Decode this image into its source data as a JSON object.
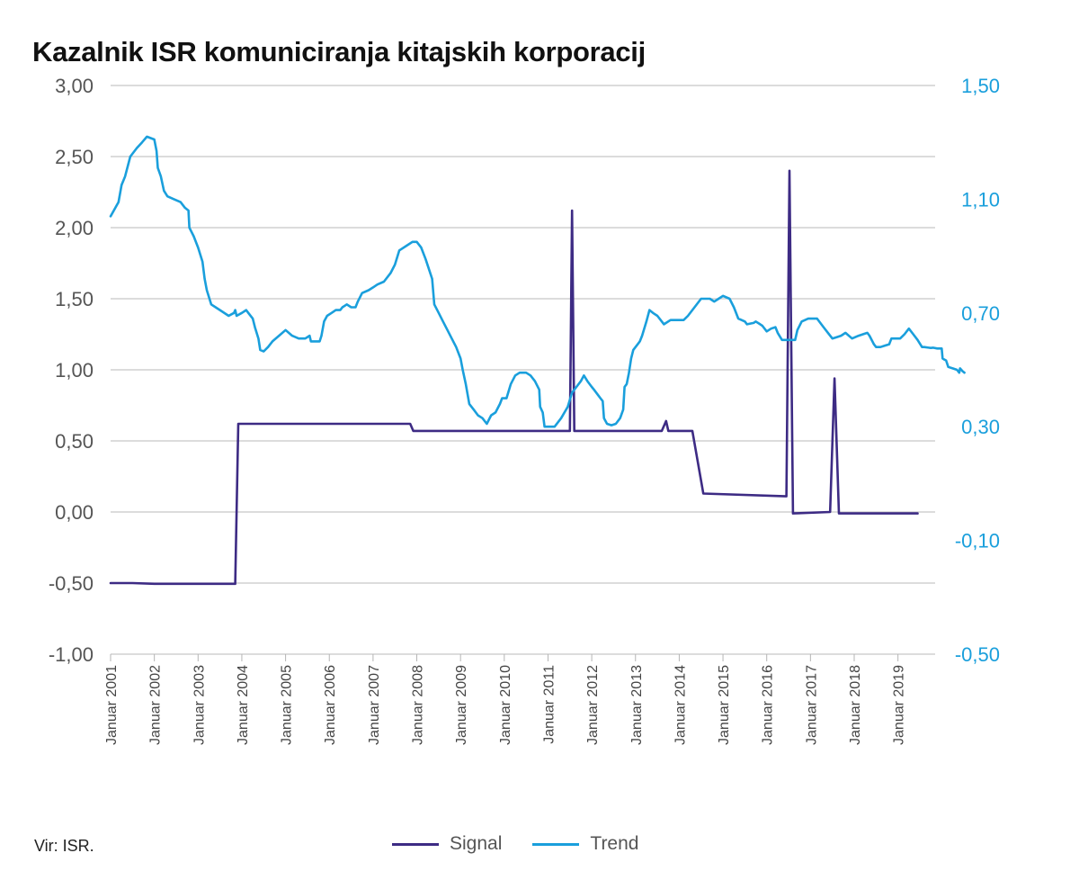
{
  "chart_data": {
    "type": "line",
    "title": "Kazalnik ISR komuniciranja kitajskih korporacij",
    "source": "Vir: ISR.",
    "y_left": {
      "ticks": [
        "3,00",
        "2,50",
        "2,00",
        "1,50",
        "1,00",
        "0,50",
        "0,00",
        "-0,50",
        "-1,00"
      ],
      "range": [
        -1.0,
        3.0
      ]
    },
    "y_right": {
      "ticks": [
        "1,50",
        "1,10",
        "0,70",
        "0,30",
        "-0,10",
        "-0,50"
      ],
      "range": [
        -0.5,
        1.5
      ],
      "color": "#1a9fdc"
    },
    "x_range": [
      2001.0,
      2019.85
    ],
    "x_ticks": [
      {
        "x": 2001,
        "label": "Januar 2001"
      },
      {
        "x": 2002,
        "label": "Januar 2002"
      },
      {
        "x": 2003,
        "label": "Januar 2003"
      },
      {
        "x": 2004,
        "label": "Januar 2004"
      },
      {
        "x": 2005,
        "label": "Januar 2005"
      },
      {
        "x": 2006,
        "label": "Januar 2006"
      },
      {
        "x": 2007,
        "label": "Januar 2007"
      },
      {
        "x": 2008,
        "label": "Januar 2008"
      },
      {
        "x": 2009,
        "label": "Januar 2009"
      },
      {
        "x": 2010,
        "label": "Januar 2010"
      },
      {
        "x": 2011,
        "label": "Januar 2011"
      },
      {
        "x": 2012,
        "label": "Januar 2012"
      },
      {
        "x": 2013,
        "label": "Januar 2013"
      },
      {
        "x": 2014,
        "label": "Januar 2014"
      },
      {
        "x": 2015,
        "label": "Januar 2015"
      },
      {
        "x": 2016,
        "label": "Januar 2016"
      },
      {
        "x": 2017,
        "label": "Januar 2017"
      },
      {
        "x": 2018,
        "label": "Januar 2018"
      },
      {
        "x": 2019,
        "label": "Januar 2019"
      }
    ],
    "grid": true,
    "legend_position": "bottom-center",
    "series": [
      {
        "name": "Signal",
        "axis": "left",
        "color": "#3d2b84",
        "points": [
          [
            2001.0,
            -0.5
          ],
          [
            2001.5,
            -0.5
          ],
          [
            2002.0,
            -0.505
          ],
          [
            2003.0,
            -0.505
          ],
          [
            2003.85,
            -0.505
          ],
          [
            2003.92,
            0.62
          ],
          [
            2005.0,
            0.62
          ],
          [
            2007.85,
            0.62
          ],
          [
            2007.92,
            0.57
          ],
          [
            2011.5,
            0.57
          ],
          [
            2011.55,
            2.12
          ],
          [
            2011.6,
            0.57
          ],
          [
            2013.6,
            0.57
          ],
          [
            2013.7,
            0.64
          ],
          [
            2013.75,
            0.57
          ],
          [
            2014.3,
            0.57
          ],
          [
            2014.55,
            0.13
          ],
          [
            2016.45,
            0.11
          ],
          [
            2016.52,
            2.4
          ],
          [
            2016.6,
            -0.01
          ],
          [
            2017.45,
            0.0
          ],
          [
            2017.55,
            0.94
          ],
          [
            2017.65,
            -0.01
          ],
          [
            2019.45,
            -0.01
          ]
        ]
      },
      {
        "name": "Trend",
        "axis": "right",
        "color": "#1a9fdc",
        "points": [
          [
            2001.0,
            1.04
          ],
          [
            2001.18,
            1.09
          ],
          [
            2001.25,
            1.15
          ],
          [
            2001.33,
            1.18
          ],
          [
            2001.45,
            1.25
          ],
          [
            2001.6,
            1.28
          ],
          [
            2001.72,
            1.3
          ],
          [
            2001.83,
            1.32
          ],
          [
            2002.0,
            1.31
          ],
          [
            2002.05,
            1.27
          ],
          [
            2002.08,
            1.21
          ],
          [
            2002.15,
            1.18
          ],
          [
            2002.22,
            1.13
          ],
          [
            2002.3,
            1.11
          ],
          [
            2002.45,
            1.1
          ],
          [
            2002.6,
            1.09
          ],
          [
            2002.7,
            1.07
          ],
          [
            2002.78,
            1.06
          ],
          [
            2002.8,
            1.0
          ],
          [
            2002.9,
            0.97
          ],
          [
            2003.0,
            0.93
          ],
          [
            2003.1,
            0.88
          ],
          [
            2003.15,
            0.82
          ],
          [
            2003.2,
            0.78
          ],
          [
            2003.3,
            0.73
          ],
          [
            2003.4,
            0.72
          ],
          [
            2003.5,
            0.71
          ],
          [
            2003.7,
            0.69
          ],
          [
            2003.82,
            0.7
          ],
          [
            2003.85,
            0.71
          ],
          [
            2003.88,
            0.69
          ],
          [
            2004.0,
            0.7
          ],
          [
            2004.1,
            0.71
          ],
          [
            2004.15,
            0.7
          ],
          [
            2004.25,
            0.68
          ],
          [
            2004.3,
            0.65
          ],
          [
            2004.38,
            0.61
          ],
          [
            2004.42,
            0.57
          ],
          [
            2004.5,
            0.565
          ],
          [
            2004.6,
            0.58
          ],
          [
            2004.7,
            0.6
          ],
          [
            2004.85,
            0.62
          ],
          [
            2005.0,
            0.64
          ],
          [
            2005.15,
            0.62
          ],
          [
            2005.3,
            0.61
          ],
          [
            2005.45,
            0.61
          ],
          [
            2005.55,
            0.62
          ],
          [
            2005.58,
            0.6
          ],
          [
            2005.65,
            0.6
          ],
          [
            2005.78,
            0.6
          ],
          [
            2005.82,
            0.62
          ],
          [
            2005.88,
            0.67
          ],
          [
            2005.95,
            0.69
          ],
          [
            2006.05,
            0.7
          ],
          [
            2006.15,
            0.71
          ],
          [
            2006.25,
            0.71
          ],
          [
            2006.3,
            0.72
          ],
          [
            2006.4,
            0.73
          ],
          [
            2006.5,
            0.72
          ],
          [
            2006.6,
            0.72
          ],
          [
            2006.65,
            0.74
          ],
          [
            2006.75,
            0.77
          ],
          [
            2006.9,
            0.78
          ],
          [
            2007.0,
            0.79
          ],
          [
            2007.1,
            0.8
          ],
          [
            2007.25,
            0.81
          ],
          [
            2007.4,
            0.84
          ],
          [
            2007.5,
            0.87
          ],
          [
            2007.6,
            0.92
          ],
          [
            2007.8,
            0.94
          ],
          [
            2007.9,
            0.95
          ],
          [
            2008.0,
            0.95
          ],
          [
            2008.1,
            0.93
          ],
          [
            2008.2,
            0.89
          ],
          [
            2008.35,
            0.82
          ],
          [
            2008.4,
            0.73
          ],
          [
            2008.5,
            0.7
          ],
          [
            2008.6,
            0.67
          ],
          [
            2008.7,
            0.64
          ],
          [
            2008.8,
            0.61
          ],
          [
            2008.9,
            0.58
          ],
          [
            2009.0,
            0.54
          ],
          [
            2009.05,
            0.5
          ],
          [
            2009.12,
            0.45
          ],
          [
            2009.2,
            0.38
          ],
          [
            2009.3,
            0.36
          ],
          [
            2009.4,
            0.34
          ],
          [
            2009.5,
            0.33
          ],
          [
            2009.6,
            0.31
          ],
          [
            2009.7,
            0.34
          ],
          [
            2009.8,
            0.35
          ],
          [
            2009.9,
            0.38
          ],
          [
            2009.95,
            0.4
          ],
          [
            2010.05,
            0.4
          ],
          [
            2010.15,
            0.45
          ],
          [
            2010.25,
            0.48
          ],
          [
            2010.35,
            0.49
          ],
          [
            2010.5,
            0.49
          ],
          [
            2010.6,
            0.48
          ],
          [
            2010.7,
            0.46
          ],
          [
            2010.8,
            0.43
          ],
          [
            2010.82,
            0.37
          ],
          [
            2010.88,
            0.35
          ],
          [
            2010.92,
            0.3
          ],
          [
            2011.05,
            0.3
          ],
          [
            2011.15,
            0.3
          ],
          [
            2011.3,
            0.33
          ],
          [
            2011.45,
            0.37
          ],
          [
            2011.55,
            0.42
          ],
          [
            2011.65,
            0.44
          ],
          [
            2011.75,
            0.46
          ],
          [
            2011.82,
            0.48
          ],
          [
            2011.9,
            0.46
          ],
          [
            2012.0,
            0.44
          ],
          [
            2012.05,
            0.43
          ],
          [
            2012.15,
            0.41
          ],
          [
            2012.2,
            0.4
          ],
          [
            2012.25,
            0.39
          ],
          [
            2012.28,
            0.33
          ],
          [
            2012.35,
            0.31
          ],
          [
            2012.45,
            0.305
          ],
          [
            2012.55,
            0.31
          ],
          [
            2012.65,
            0.33
          ],
          [
            2012.72,
            0.36
          ],
          [
            2012.75,
            0.44
          ],
          [
            2012.8,
            0.45
          ],
          [
            2012.85,
            0.49
          ],
          [
            2012.9,
            0.54
          ],
          [
            2012.95,
            0.57
          ],
          [
            2013.05,
            0.59
          ],
          [
            2013.1,
            0.6
          ],
          [
            2013.15,
            0.62
          ],
          [
            2013.25,
            0.67
          ],
          [
            2013.32,
            0.71
          ],
          [
            2013.4,
            0.7
          ],
          [
            2013.5,
            0.69
          ],
          [
            2013.6,
            0.67
          ],
          [
            2013.65,
            0.66
          ],
          [
            2013.8,
            0.675
          ],
          [
            2013.9,
            0.675
          ],
          [
            2014.0,
            0.675
          ],
          [
            2014.1,
            0.675
          ],
          [
            2014.2,
            0.69
          ],
          [
            2014.35,
            0.72
          ],
          [
            2014.5,
            0.75
          ],
          [
            2014.7,
            0.75
          ],
          [
            2014.8,
            0.74
          ],
          [
            2014.9,
            0.75
          ],
          [
            2015.0,
            0.76
          ],
          [
            2015.15,
            0.75
          ],
          [
            2015.25,
            0.72
          ],
          [
            2015.35,
            0.68
          ],
          [
            2015.5,
            0.67
          ],
          [
            2015.55,
            0.66
          ],
          [
            2015.7,
            0.665
          ],
          [
            2015.75,
            0.67
          ],
          [
            2015.85,
            0.66
          ],
          [
            2015.9,
            0.655
          ],
          [
            2016.0,
            0.635
          ],
          [
            2016.1,
            0.645
          ],
          [
            2016.2,
            0.65
          ],
          [
            2016.25,
            0.63
          ],
          [
            2016.35,
            0.605
          ],
          [
            2016.5,
            0.605
          ],
          [
            2016.65,
            0.605
          ],
          [
            2016.7,
            0.64
          ],
          [
            2016.8,
            0.67
          ],
          [
            2016.95,
            0.68
          ],
          [
            2017.05,
            0.68
          ],
          [
            2017.15,
            0.68
          ],
          [
            2017.3,
            0.65
          ],
          [
            2017.4,
            0.63
          ],
          [
            2017.5,
            0.61
          ],
          [
            2017.6,
            0.615
          ],
          [
            2017.7,
            0.62
          ],
          [
            2017.8,
            0.63
          ],
          [
            2017.95,
            0.61
          ],
          [
            2018.1,
            0.62
          ],
          [
            2018.2,
            0.625
          ],
          [
            2018.3,
            0.63
          ],
          [
            2018.35,
            0.62
          ],
          [
            2018.45,
            0.59
          ],
          [
            2018.5,
            0.58
          ],
          [
            2018.6,
            0.58
          ],
          [
            2018.7,
            0.585
          ],
          [
            2018.8,
            0.59
          ],
          [
            2018.85,
            0.61
          ],
          [
            2018.95,
            0.61
          ],
          [
            2019.05,
            0.61
          ],
          [
            2019.15,
            0.625
          ],
          [
            2019.25,
            0.645
          ],
          [
            2019.35,
            0.625
          ],
          [
            2019.45,
            0.605
          ],
          [
            2019.55,
            0.58
          ],
          [
            2019.6,
            0.58
          ],
          [
            2019.7,
            0.578
          ],
          [
            2019.75,
            0.577
          ],
          [
            2019.8,
            0.578
          ],
          [
            2019.9,
            0.575
          ],
          [
            2020.0,
            0.575
          ],
          [
            2020.02,
            0.54
          ],
          [
            2020.05,
            0.537
          ],
          [
            2020.1,
            0.533
          ],
          [
            2020.15,
            0.51
          ],
          [
            2020.25,
            0.505
          ],
          [
            2020.35,
            0.5
          ],
          [
            2020.4,
            0.49
          ],
          [
            2020.42,
            0.505
          ],
          [
            2020.48,
            0.495
          ],
          [
            2020.52,
            0.49
          ]
        ]
      }
    ]
  }
}
